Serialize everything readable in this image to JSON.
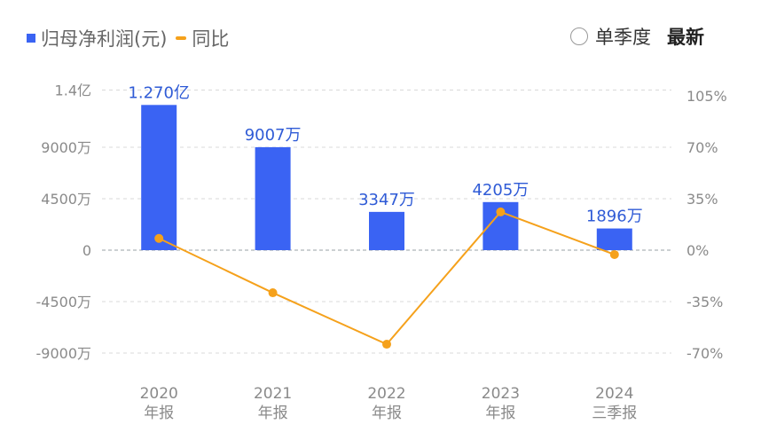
{
  "legend": {
    "bar_label": "归母净利润(元)",
    "line_label": "同比"
  },
  "controls": {
    "quarter_label": "单季度",
    "latest_label": "最新"
  },
  "colors": {
    "bar": "#3a63f3",
    "line": "#f5a11b",
    "label": "#2f5bd6",
    "axis_text": "#8a8a8a",
    "grid": "#d9d9d9"
  },
  "chart_data": {
    "type": "bar",
    "categories": [
      [
        "2020",
        "年报"
      ],
      [
        "2021",
        "年报"
      ],
      [
        "2022",
        "年报"
      ],
      [
        "2023",
        "年报"
      ],
      [
        "2024",
        "三季报"
      ]
    ],
    "series": [
      {
        "name": "归母净利润(元)",
        "type": "bar",
        "axis": "left",
        "values": [
          127000000,
          90070000,
          33470000,
          42050000,
          18960000
        ],
        "labels": [
          "1.270亿",
          "9007万",
          "3347万",
          "4205万",
          "1896万"
        ]
      },
      {
        "name": "同比",
        "type": "line",
        "axis": "right",
        "values": [
          8,
          -29,
          -64,
          26,
          -3
        ]
      }
    ],
    "left_axis": {
      "ticks": [
        140000000,
        90000000,
        45000000,
        0,
        -45000000,
        -90000000
      ],
      "tick_labels": [
        "1.4亿",
        "9000万",
        "4500万",
        "0",
        "-4500万",
        "-9000万"
      ]
    },
    "right_axis": {
      "ticks": [
        105,
        70,
        35,
        0,
        -35,
        -70
      ],
      "tick_labels": [
        "105%",
        "70%",
        "35%",
        "0%",
        "-35%",
        "-70%"
      ]
    },
    "grid": true
  }
}
